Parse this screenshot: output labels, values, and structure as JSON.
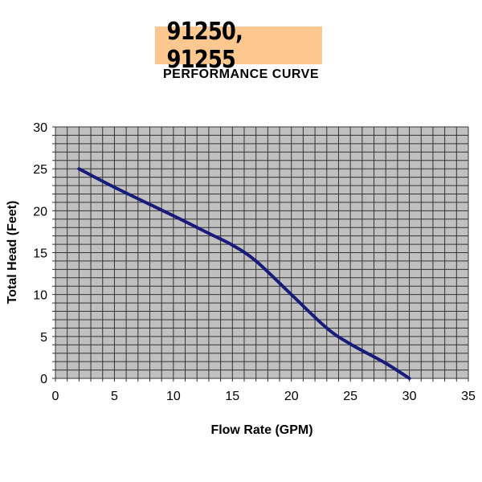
{
  "header": {
    "title": "91250, 91255",
    "subtitle": "PERFORMANCE CURVE"
  },
  "colors": {
    "title_bg": "#fcc890",
    "plot_bg": "#c0c0c0",
    "grid": "#333333",
    "curve": "#1a1a7a"
  },
  "chart_data": {
    "type": "line",
    "title": "91250, 91255 PERFORMANCE CURVE",
    "xlabel": "Flow Rate (GPM)",
    "ylabel": "Total Head (Feet)",
    "xlim": [
      0,
      35
    ],
    "ylim": [
      0,
      30
    ],
    "xticks": [
      0,
      5,
      10,
      15,
      20,
      25,
      30,
      35
    ],
    "yticks": [
      0,
      5,
      10,
      15,
      20,
      25,
      30
    ],
    "grid": true,
    "grid_minor_step": 1,
    "legend": "none",
    "series": [
      {
        "name": "Performance",
        "x": [
          2,
          5,
          10,
          13,
          15,
          17,
          20,
          23,
          25,
          28,
          30
        ],
        "y": [
          25,
          22.8,
          19.4,
          17.3,
          15.9,
          14,
          10,
          6,
          4.1,
          1.8,
          0
        ]
      }
    ]
  }
}
